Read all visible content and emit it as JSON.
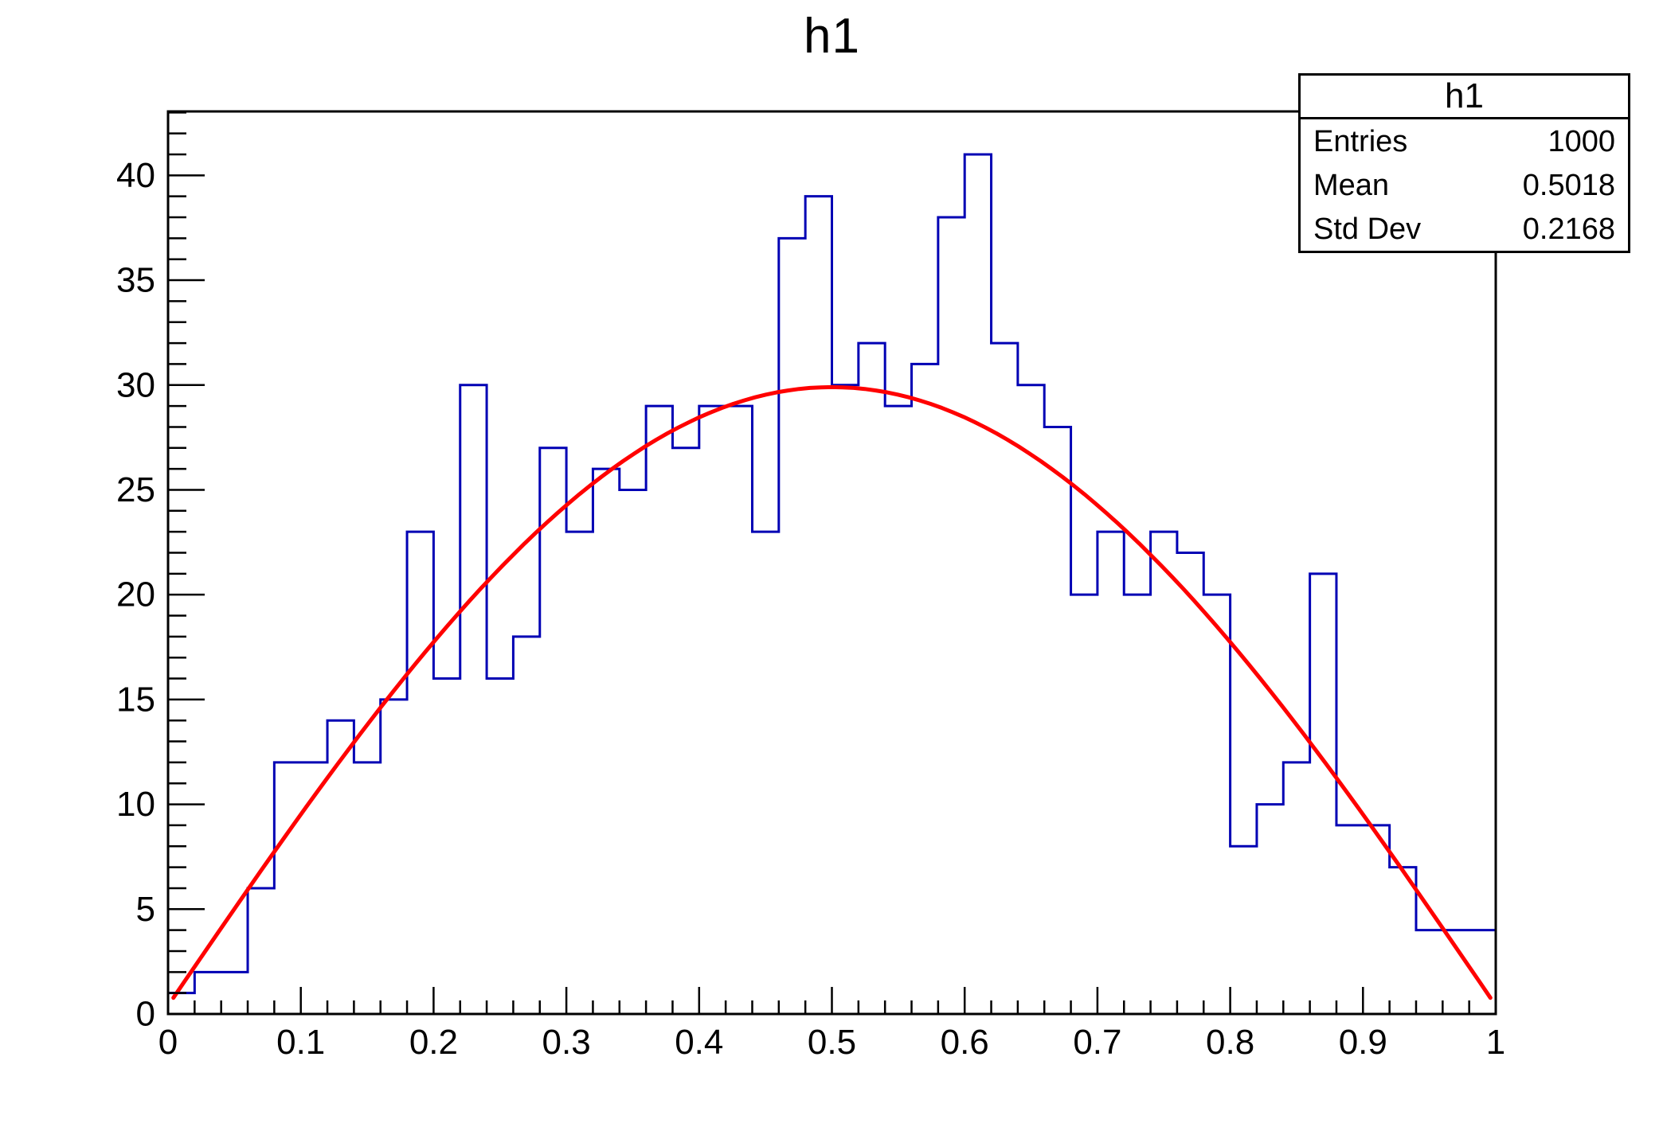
{
  "page_title": "h1",
  "stats_box": {
    "title": "h1",
    "rows": [
      {
        "label": "Entries",
        "value": "1000"
      },
      {
        "label": "Mean",
        "value": "0.5018"
      },
      {
        "label": "Std Dev",
        "value": "0.2168"
      }
    ]
  },
  "chart_data": {
    "type": "bar",
    "subtype": "histogram-step-outline",
    "title": "h1",
    "xlabel": "",
    "ylabel": "",
    "xlim": [
      0,
      1
    ],
    "ylim": [
      0,
      43.05
    ],
    "grid": false,
    "n_bins": 50,
    "bin_start": 0,
    "bin_width": 0.02,
    "values": [
      1,
      2,
      2,
      6,
      12,
      12,
      14,
      12,
      15,
      23,
      16,
      30,
      16,
      18,
      27,
      23,
      26,
      25,
      29,
      27,
      29,
      29,
      23,
      37,
      39,
      30,
      32,
      29,
      31,
      38,
      41,
      32,
      30,
      28,
      20,
      23,
      20,
      23,
      22,
      20,
      8,
      10,
      12,
      21,
      9,
      9,
      7,
      4,
      4,
      4
    ],
    "entries": 1000,
    "mean": 0.5018,
    "std_dev": 0.2168,
    "x_major_ticks": [
      0,
      0.1,
      0.2,
      0.3,
      0.4,
      0.5,
      0.6,
      0.7,
      0.8,
      0.9,
      1
    ],
    "x_tick_labels": [
      "0",
      "0.1",
      "0.2",
      "0.3",
      "0.4",
      "0.5",
      "0.6",
      "0.7",
      "0.8",
      "0.9",
      "1"
    ],
    "x_minor_step": 0.02,
    "y_major_ticks": [
      0,
      5,
      10,
      15,
      20,
      25,
      30,
      35,
      40
    ],
    "y_tick_labels": [
      "0",
      "5",
      "10",
      "15",
      "20",
      "25",
      "30",
      "35",
      "40"
    ],
    "y_minor_step": 1,
    "histogram_color": "#0000b4",
    "fit_curve": {
      "type": "sine",
      "formula": "y = c + A*sin(pi*x)",
      "A": 29.5,
      "c": 0.4,
      "x_start": 0.004,
      "x_end": 0.996,
      "color": "#ff0000"
    },
    "frame_color": "#000000",
    "background_color": "#ffffff"
  }
}
